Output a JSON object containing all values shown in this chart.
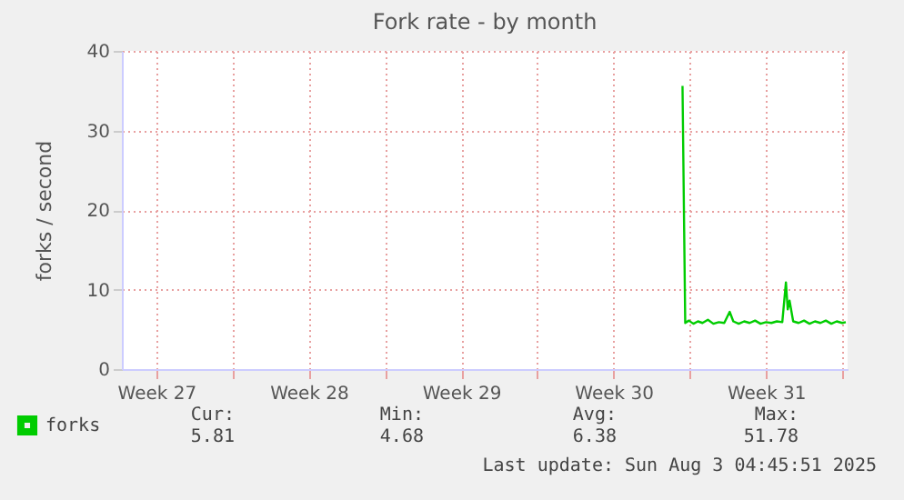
{
  "chart_data": {
    "type": "line",
    "title": "Fork rate - by month",
    "ylabel": "forks / second",
    "x": [
      "2025-07-27T16:00",
      "2025-07-27T19:00",
      "2025-07-27T23:00",
      "2025-07-28T04:00",
      "2025-07-28T09:00",
      "2025-07-28T14:00",
      "2025-07-28T20:00",
      "2025-07-29T02:00",
      "2025-07-29T08:00",
      "2025-07-29T14:00",
      "2025-07-29T20:00",
      "2025-07-30T00:00",
      "2025-07-30T06:00",
      "2025-07-30T12:00",
      "2025-07-30T18:00",
      "2025-07-31T00:00",
      "2025-07-31T06:00",
      "2025-07-31T12:00",
      "2025-07-31T18:00",
      "2025-08-01T00:00",
      "2025-08-01T06:00",
      "2025-08-01T10:00",
      "2025-08-01T12:00",
      "2025-08-01T14:00",
      "2025-08-01T18:00",
      "2025-08-02T00:00",
      "2025-08-02T06:00",
      "2025-08-02T12:00",
      "2025-08-02T18:00",
      "2025-08-03T00:00",
      "2025-08-03T06:00",
      "2025-08-03T12:00",
      "2025-08-03T18:00",
      "2025-08-04T00:00",
      "2025-08-04T04:00"
    ],
    "series": [
      {
        "name": "forks",
        "color": "#00cc00",
        "values": [
          35.6,
          5.8,
          6.1,
          5.7,
          6.0,
          5.8,
          6.2,
          5.7,
          5.9,
          5.8,
          7.2,
          6.0,
          5.7,
          6.0,
          5.8,
          6.1,
          5.7,
          5.9,
          5.8,
          6.0,
          5.9,
          10.9,
          7.5,
          8.6,
          6.0,
          5.8,
          6.1,
          5.7,
          6.0,
          5.8,
          6.1,
          5.7,
          6.0,
          5.8,
          5.9
        ]
      }
    ],
    "xlim": [
      "2025-07-01T22:00",
      "2025-08-04T06:00"
    ],
    "xticks": [
      {
        "value": "2025-07-03T12:00",
        "label": "Week 27"
      },
      {
        "value": "2025-07-07T00:00",
        "label": null
      },
      {
        "value": "2025-07-10T12:00",
        "label": "Week 28"
      },
      {
        "value": "2025-07-14T00:00",
        "label": null
      },
      {
        "value": "2025-07-17T12:00",
        "label": "Week 29"
      },
      {
        "value": "2025-07-21T00:00",
        "label": null
      },
      {
        "value": "2025-07-24T12:00",
        "label": "Week 30"
      },
      {
        "value": "2025-07-28T00:00",
        "label": null
      },
      {
        "value": "2025-07-31T12:00",
        "label": "Week 31"
      },
      {
        "value": "2025-08-04T00:00",
        "label": null
      }
    ],
    "ylim": [
      0,
      40
    ],
    "yticks": [
      0,
      10,
      20,
      30,
      40
    ],
    "grid": true,
    "legend": "bottom left",
    "annotations": [
      "Cur:",
      "5.81",
      "Min:",
      "4.68",
      "Avg:",
      "6.38",
      "Max:",
      "51.78",
      "Last update: Sun Aug  3 04:45:51 2025"
    ]
  }
}
